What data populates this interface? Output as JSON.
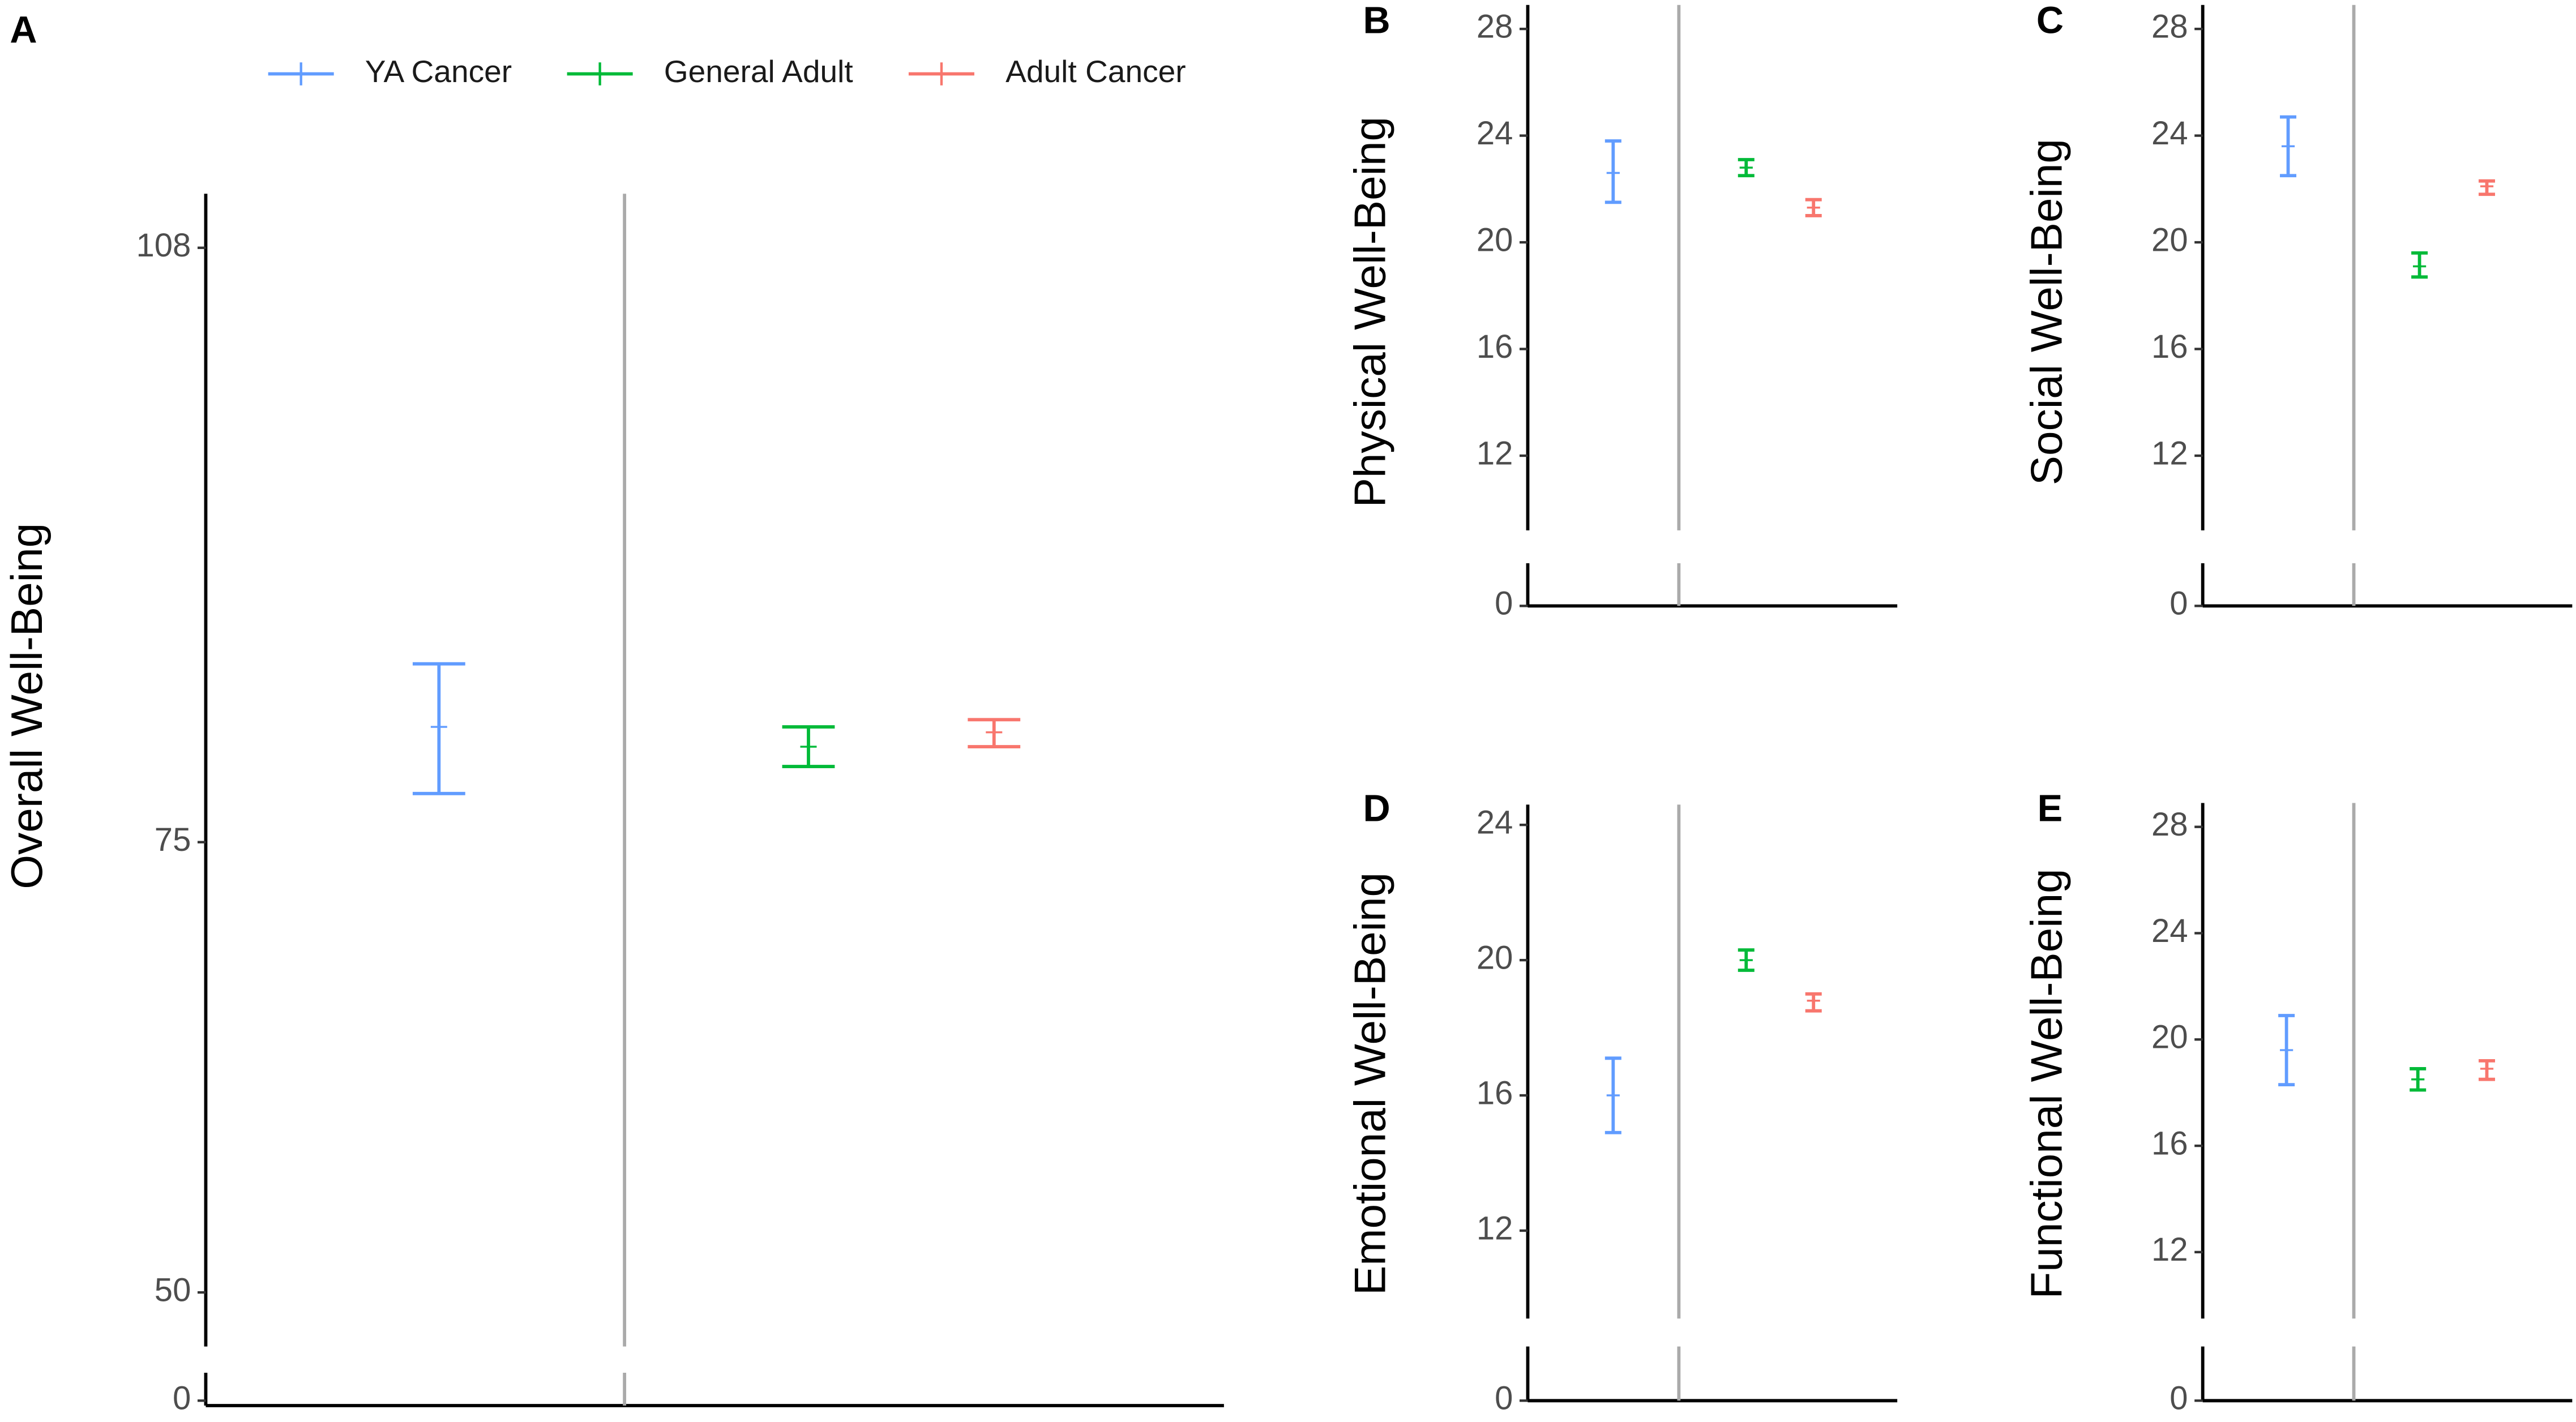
{
  "chart_data": [
    {
      "type": "errorbar",
      "label": "A",
      "ylabel": "Overall Well-Being",
      "categories": [
        "YA Cancer",
        "General Adult",
        "Adult Cancer"
      ],
      "colors": [
        "#619cff",
        "#00ba38",
        "#f8766d"
      ],
      "values": [
        81.4,
        80.3,
        81.1
      ],
      "upper": [
        84.9,
        81.4,
        81.8
      ],
      "lower": [
        77.7,
        79.2,
        80.3
      ],
      "ylim": [
        47,
        111
      ],
      "yticks": [
        50,
        75,
        108
      ],
      "lower_yticks": [
        0
      ]
    },
    {
      "type": "errorbar",
      "label": "B",
      "ylabel": "Physical Well-Being",
      "values": [
        22.6,
        22.8,
        21.3
      ],
      "upper": [
        23.8,
        23.1,
        21.6
      ],
      "lower": [
        21.5,
        22.5,
        21.0
      ],
      "ylim": [
        9.2,
        28.9
      ],
      "yticks": [
        12,
        16,
        20,
        24,
        28
      ],
      "lower_yticks": [
        0
      ]
    },
    {
      "type": "errorbar",
      "label": "C",
      "ylabel": "Social Well-Being",
      "values": [
        23.6,
        19.1,
        22.1
      ],
      "upper": [
        24.7,
        19.6,
        22.3
      ],
      "lower": [
        22.5,
        18.7,
        21.8
      ],
      "ylim": [
        9.2,
        28.9
      ],
      "yticks": [
        12,
        16,
        20,
        24,
        28
      ],
      "lower_yticks": [
        0
      ]
    },
    {
      "type": "errorbar",
      "label": "D",
      "ylabel": "Emotional Well-Being",
      "values": [
        16.0,
        20.0,
        18.8
      ],
      "upper": [
        17.1,
        20.3,
        19.0
      ],
      "lower": [
        14.9,
        19.7,
        18.5
      ],
      "ylim": [
        9.4,
        24.6
      ],
      "yticks": [
        12,
        16,
        20,
        24
      ],
      "lower_yticks": [
        0
      ]
    },
    {
      "type": "errorbar",
      "label": "E",
      "ylabel": "Functional Well-Being",
      "values": [
        19.6,
        18.5,
        18.9
      ],
      "upper": [
        20.9,
        18.9,
        19.2
      ],
      "lower": [
        18.3,
        18.1,
        18.5
      ],
      "ylim": [
        9.5,
        28.9
      ],
      "yticks": [
        12,
        16,
        20,
        24,
        28
      ],
      "lower_yticks": [
        0
      ]
    }
  ]
}
